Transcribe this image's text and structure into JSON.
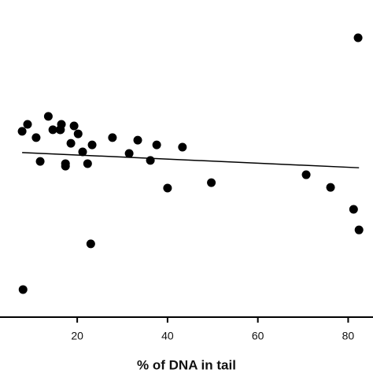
{
  "chart_data": {
    "type": "scatter",
    "x_label": "% of DNA in tail",
    "x": [
      7.8,
      9.0,
      10.9,
      11.8,
      13.6,
      14.6,
      16.2,
      16.5,
      16.3,
      17.4,
      17.4,
      18.6,
      19.3,
      20.2,
      21.2,
      22.3,
      23.3,
      23.0,
      8.0,
      27.8,
      31.5,
      33.4,
      36.2,
      37.6,
      40.0,
      43.3,
      49.7,
      70.7,
      76.1,
      81.2,
      82.4,
      82.2
    ],
    "y": [
      58.6,
      60.8,
      56.6,
      49.1,
      63.3,
      59.1,
      59.1,
      60.8,
      59.1,
      48.4,
      47.6,
      54.8,
      60.3,
      57.8,
      52.1,
      48.4,
      54.3,
      23.1,
      8.7,
      56.6,
      51.6,
      55.8,
      49.4,
      54.3,
      40.7,
      53.6,
      42.4,
      44.9,
      40.9,
      34.0,
      27.5,
      88.1
    ],
    "color": "#000000",
    "trend_line": {
      "x": [
        7.8,
        82.4
      ],
      "y": [
        51.9,
        47.1
      ],
      "color": "#000000"
    },
    "xlim": [
      2.9,
      85.5
    ],
    "ylim": [
      0,
      100
    ],
    "xticks": [
      20,
      40,
      60,
      80
    ]
  }
}
